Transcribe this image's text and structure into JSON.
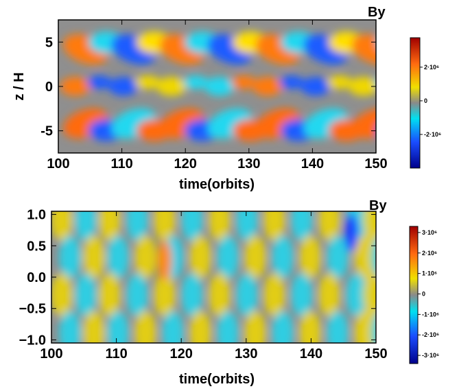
{
  "chart_data": [
    {
      "type": "heatmap",
      "title": "By",
      "xlabel": "time(orbits)",
      "ylabel": "z / H",
      "xlim": [
        100,
        150
      ],
      "ylim": [
        -7.5,
        7.5
      ],
      "xticks": [
        100,
        110,
        120,
        130,
        140,
        150
      ],
      "yticks": [
        5,
        0,
        -5
      ],
      "clim": [
        -4000000,
        3750000
      ],
      "cticks": [
        {
          "value": 2000000,
          "label": "2·10⁶"
        },
        0,
        {
          "value": -2000000,
          "label": "-2·10⁶"
        }
      ]
    },
    {
      "type": "heatmap",
      "title": "By",
      "xlabel": "time(orbits)",
      "xlim": [
        100,
        150
      ],
      "ylim": [
        -1.05,
        1.05
      ],
      "xticks": [
        100,
        110,
        120,
        130,
        140,
        150
      ],
      "yticks": [
        {
          "value": 1.0,
          "label": "1.0"
        },
        {
          "value": 0.5,
          "label": "0.5"
        },
        {
          "value": 0.0,
          "label": "0.0"
        },
        {
          "value": -0.5,
          "label": "−0.5"
        },
        {
          "value": -1.0,
          "label": "−1.0"
        }
      ],
      "clim": [
        -3400000,
        3300000
      ],
      "cticks": [
        {
          "value": 3000000,
          "label": "3·10⁶"
        },
        {
          "value": 2000000,
          "label": "2·10⁶"
        },
        {
          "value": 1000000,
          "label": "1·10⁶"
        },
        0,
        {
          "value": -1000000,
          "label": "-1·10⁶"
        },
        {
          "value": -2000000,
          "label": "-2·10⁶"
        },
        {
          "value": -3000000,
          "label": "-3·10⁶"
        }
      ]
    }
  ]
}
